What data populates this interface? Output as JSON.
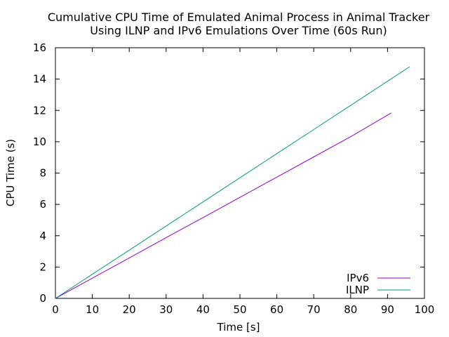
{
  "chart_data": {
    "type": "line",
    "title_lines": [
      "Cumulative CPU Time of Emulated Animal Process in Animal Tracker",
      "Using ILNP and IPv6 Emulations Over Time (60s Run)"
    ],
    "xlabel": "Time [s]",
    "ylabel": "CPU Time (s)",
    "xlim": [
      0,
      100
    ],
    "ylim": [
      0,
      16
    ],
    "x_ticks": [
      0,
      10,
      20,
      30,
      40,
      50,
      60,
      70,
      80,
      90,
      100
    ],
    "y_ticks": [
      0,
      2,
      4,
      6,
      8,
      10,
      12,
      14,
      16
    ],
    "grid": false,
    "legend_position": "bottom-right",
    "series": [
      {
        "name": "IPv6",
        "color": "#9400d3",
        "x": [
          0,
          10,
          20,
          30,
          40,
          50,
          60,
          70,
          80,
          91
        ],
        "y": [
          0,
          1.29,
          2.58,
          3.88,
          5.16,
          6.45,
          7.74,
          9.03,
          10.32,
          11.84
        ]
      },
      {
        "name": "ILNP",
        "color": "#009e73",
        "x": [
          0,
          10,
          20,
          30,
          40,
          50,
          60,
          70,
          80,
          90,
          96
        ],
        "y": [
          0,
          1.54,
          3.08,
          4.62,
          6.16,
          7.7,
          9.24,
          10.78,
          12.32,
          13.86,
          14.79
        ]
      }
    ]
  }
}
